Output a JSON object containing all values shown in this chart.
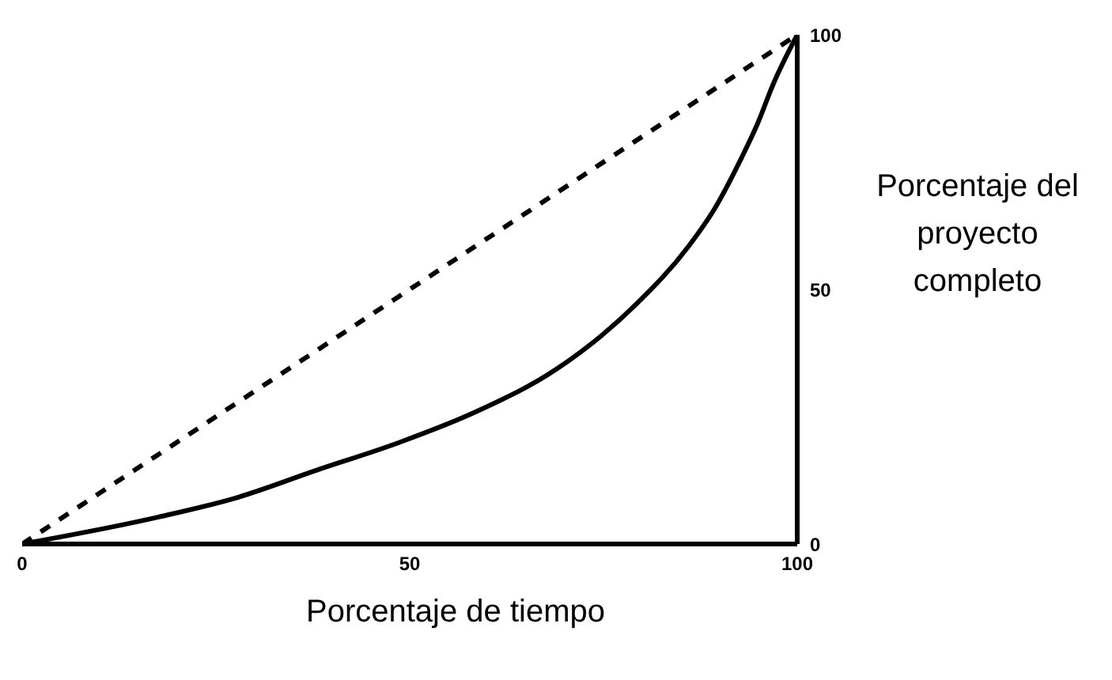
{
  "chart_data": {
    "type": "line",
    "xlabel": "Porcentaje de tiempo",
    "ylabel": "Porcentaje del proyecto completo",
    "series": [
      {
        "color": "#000000",
        "line_style": "dashed",
        "x": [
          0,
          100
        ],
        "values": [
          0,
          100
        ]
      },
      {
        "color": "#000000",
        "line_style": "solid",
        "x": [
          0,
          17.6,
          27.9,
          38,
          48.4,
          58.6,
          68.9,
          79.1,
          86,
          89.4,
          92.8,
          94.9,
          96.9,
          100
        ],
        "values": [
          0,
          5.3,
          9.2,
          14.5,
          19.8,
          26,
          34.3,
          46.9,
          58.5,
          66,
          75.8,
          82.6,
          90.3,
          100
        ]
      }
    ],
    "xlim": [
      0,
      100
    ],
    "ylim": [
      0,
      100
    ],
    "xticks": [
      0,
      50,
      100
    ],
    "yticks": [
      0,
      50,
      100
    ],
    "grid": false,
    "legend": false,
    "marker": "none"
  }
}
